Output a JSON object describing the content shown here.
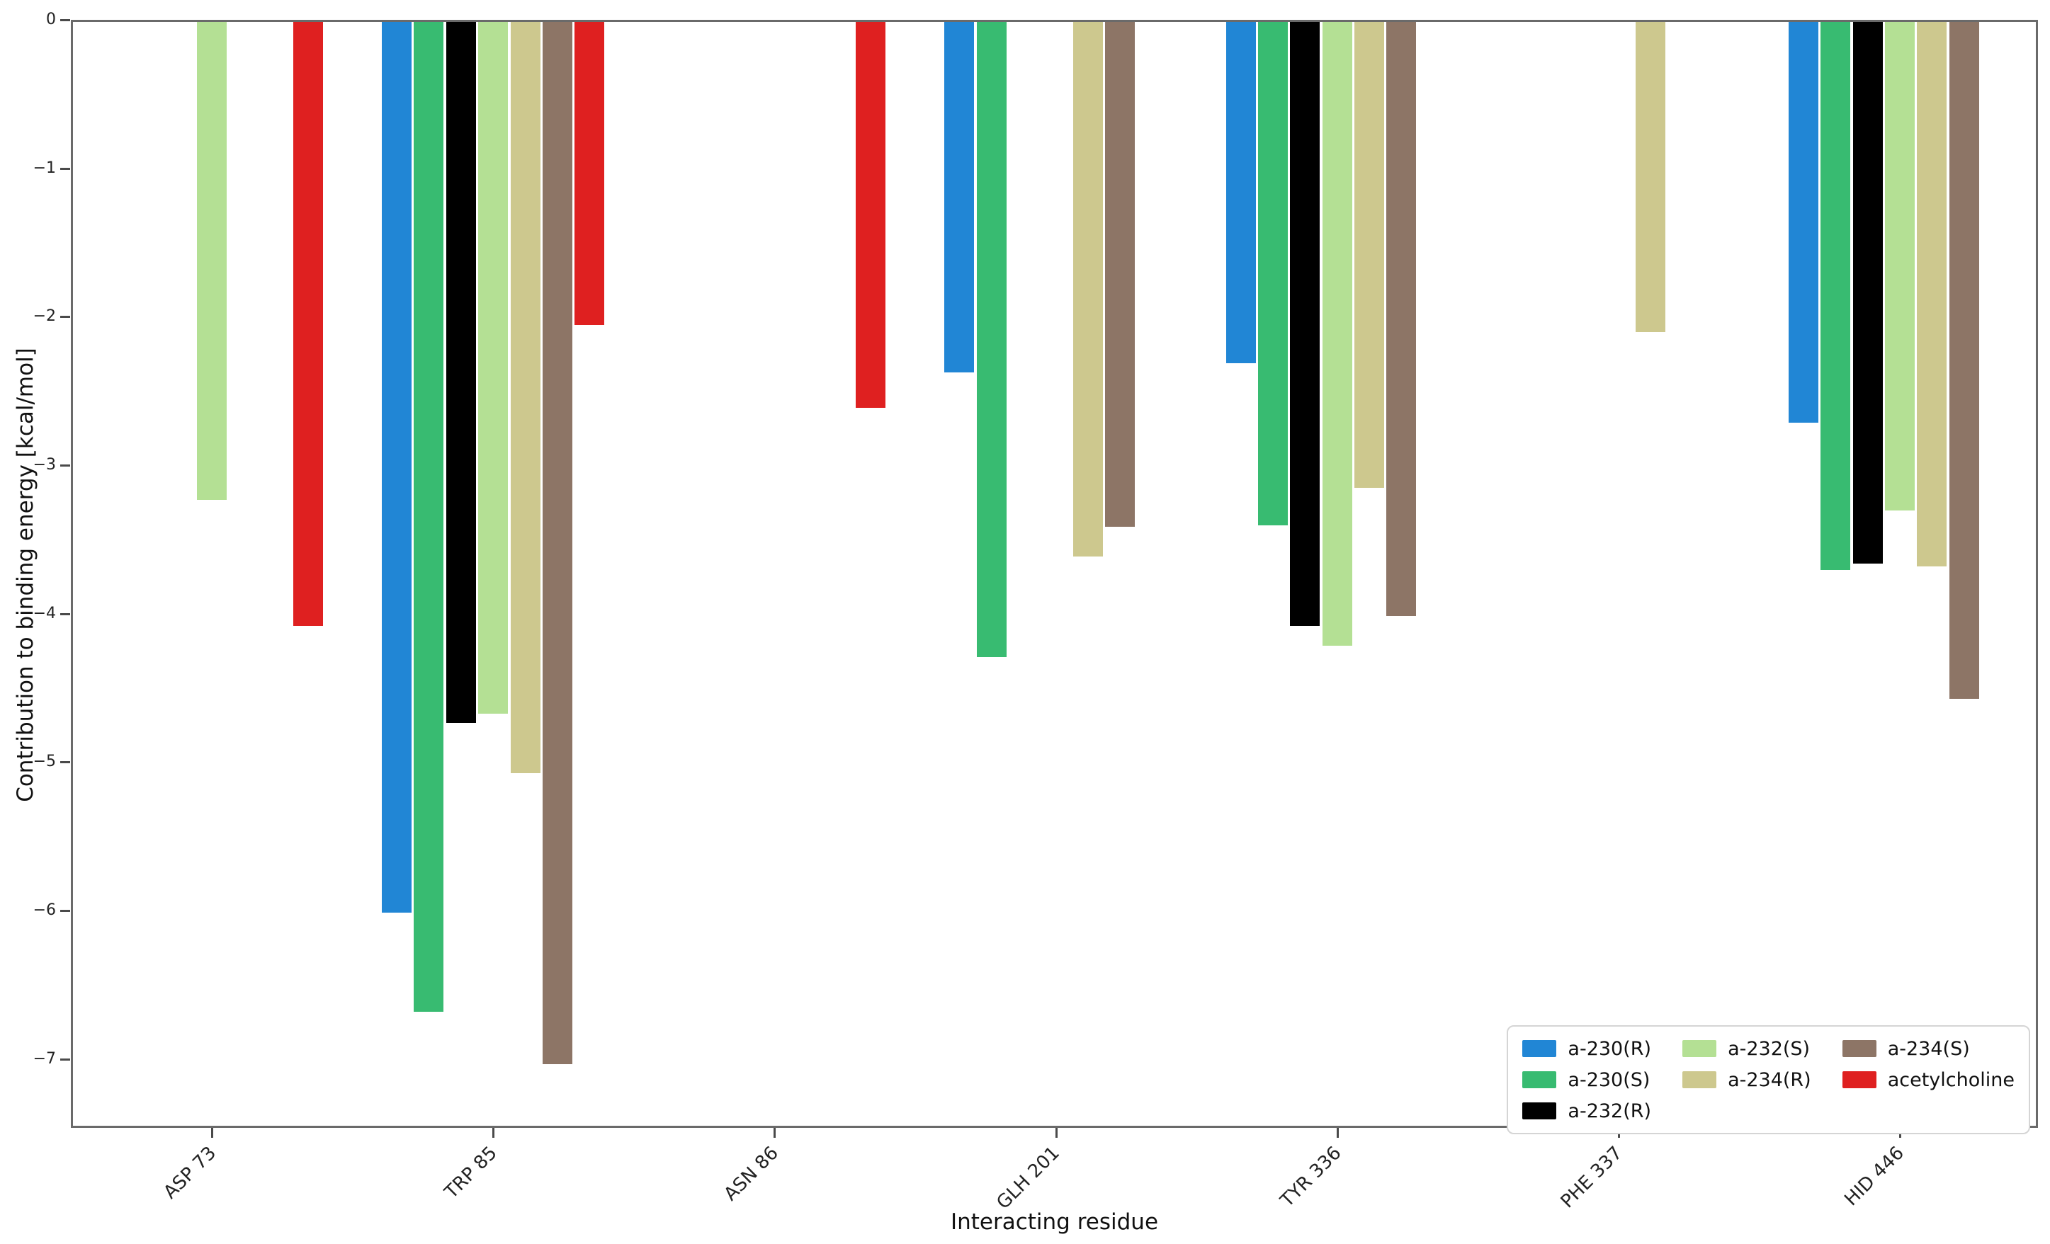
{
  "chart_data": {
    "type": "bar",
    "title": "",
    "xlabel": "Interacting residue",
    "ylabel": "Contribution to binding energy [kcal/mol]",
    "categories": [
      "ASP 73",
      "TRP 85",
      "ASN 86",
      "GLH 201",
      "TYR 336",
      "PHE 337",
      "HID 446"
    ],
    "series": [
      {
        "name": "a-230(R)",
        "color": "#2186d5",
        "values": [
          0,
          -6.0,
          0,
          -2.36,
          -2.3,
          0,
          -2.7
        ]
      },
      {
        "name": "a-230(S)",
        "color": "#38bb71",
        "values": [
          0,
          -6.67,
          0,
          -4.28,
          -3.39,
          0,
          -3.69
        ]
      },
      {
        "name": "a-232(R)",
        "color": "#000000",
        "values": [
          0,
          -4.72,
          0,
          0,
          -4.07,
          0,
          -3.65
        ]
      },
      {
        "name": "a-232(S)",
        "color": "#b4e094",
        "values": [
          -3.22,
          -4.66,
          0,
          0,
          -4.2,
          0,
          -3.29
        ]
      },
      {
        "name": "a-234(R)",
        "color": "#cdc88e",
        "values": [
          0,
          -5.06,
          0,
          -3.6,
          -3.14,
          -2.09,
          -3.67
        ]
      },
      {
        "name": "a-234(S)",
        "color": "#8d7566",
        "values": [
          0,
          -7.02,
          0,
          -3.4,
          -4.0,
          0,
          -4.56
        ]
      },
      {
        "name": "acetylcholine",
        "color": "#df2020",
        "values": [
          -4.07,
          -2.04,
          -2.6,
          0,
          0,
          0,
          0
        ]
      }
    ],
    "y_ticks": [
      "0",
      "−1",
      "−2",
      "−3",
      "−4",
      "−5",
      "−6",
      "−7"
    ],
    "y_tick_values": [
      0,
      -1,
      -2,
      -3,
      -4,
      -5,
      -6,
      -7
    ],
    "ylim": [
      -7.45,
      0
    ],
    "grid": false,
    "legend_position": "lower right",
    "legend_columns": [
      [
        0,
        1,
        2
      ],
      [
        3,
        4
      ],
      [
        5,
        6
      ]
    ]
  }
}
